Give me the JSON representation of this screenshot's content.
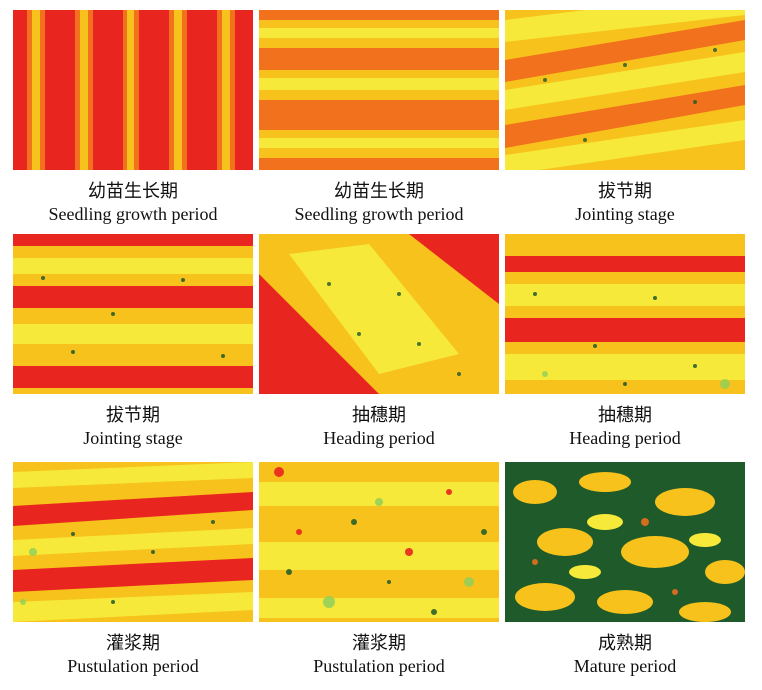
{
  "figure": {
    "panels": [
      {
        "cn": "幼苗生长期",
        "en": "Seedling growth period",
        "pattern": "vertical-stripes",
        "palette": "red-orange-yellow"
      },
      {
        "cn": "幼苗生长期",
        "en": "Seedling growth period",
        "pattern": "horizontal-bands",
        "palette": "orange-yellow"
      },
      {
        "cn": "拔节期",
        "en": "Jointing stage",
        "pattern": "diagonal-bands",
        "palette": "yellow-orange"
      },
      {
        "cn": "拔节期",
        "en": "Jointing stage",
        "pattern": "horizontal-bands",
        "palette": "red-yellow"
      },
      {
        "cn": "抽穗期",
        "en": "Heading period",
        "pattern": "diagonal-canopy",
        "palette": "red-yellow"
      },
      {
        "cn": "抽穗期",
        "en": "Heading period",
        "pattern": "horizontal-bands",
        "palette": "red-yellow-green"
      },
      {
        "cn": "灌浆期",
        "en": "Pustulation period",
        "pattern": "horizontal-bands",
        "palette": "red-yellow-green"
      },
      {
        "cn": "灌浆期",
        "en": "Pustulation period",
        "pattern": "dense-canopy",
        "palette": "yellow-green"
      },
      {
        "cn": "成熟期",
        "en": "Mature period",
        "pattern": "dense-canopy",
        "palette": "dark-green-yellow"
      }
    ],
    "colors": {
      "red": "#e8251f",
      "orange": "#f2711c",
      "yellow": "#f7c21b",
      "light_yellow": "#f6e93a",
      "green": "#1e5a2a",
      "light_green": "#8fcf5a"
    }
  }
}
